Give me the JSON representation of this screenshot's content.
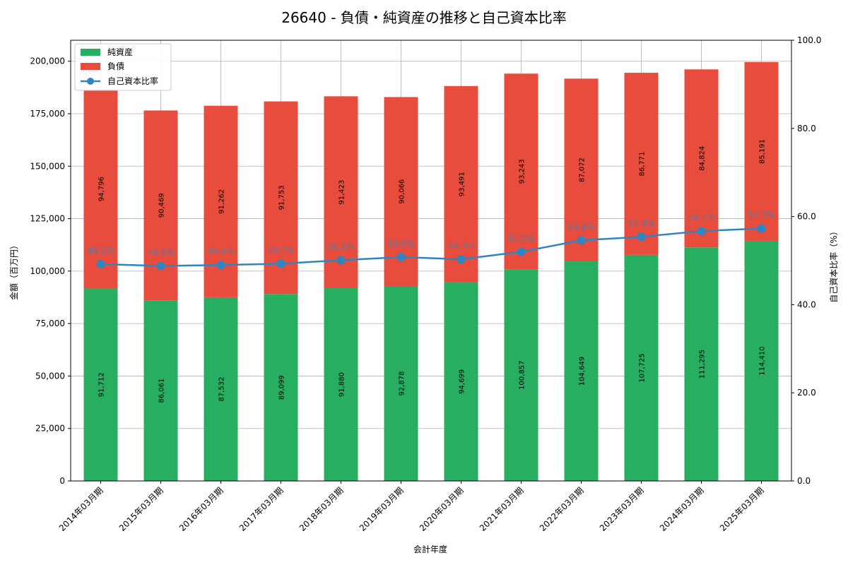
{
  "chart_data": {
    "type": "bar",
    "title": "26640 - 負債・純資産の推移と自己資本比率",
    "xlabel": "会計年度",
    "ylabel": "金額（百万円）",
    "y2label": "自己資本比率（%）",
    "ylim": [
      0,
      210000
    ],
    "y2lim": [
      0,
      100
    ],
    "yticks": [
      "0",
      "25,000",
      "50,000",
      "75,000",
      "100,000",
      "125,000",
      "150,000",
      "175,000",
      "200,000"
    ],
    "y2ticks": [
      "0.0",
      "20.0",
      "40.0",
      "60.0",
      "80.0",
      "100.0"
    ],
    "categories": [
      "2014年03月期",
      "2015年03月期",
      "2016年03月期",
      "2017年03月期",
      "2018年03月期",
      "2019年03月期",
      "2020年03月期",
      "2021年03月期",
      "2022年03月期",
      "2023年03月期",
      "2024年03月期",
      "2025年03月期"
    ],
    "series": [
      {
        "name": "純資産",
        "kind": "bar",
        "color": "#27ae60",
        "values": [
          91712,
          86061,
          87532,
          89099,
          91880,
          92878,
          94699,
          100857,
          104649,
          107725,
          111295,
          114410
        ],
        "labels": [
          "91,712",
          "86,061",
          "87,532",
          "89,099",
          "91,880",
          "92,878",
          "94,699",
          "100,857",
          "104,649",
          "107,725",
          "111,295",
          "114,410"
        ]
      },
      {
        "name": "負債",
        "kind": "bar",
        "color": "#e74c3c",
        "values": [
          94796,
          90469,
          91262,
          91753,
          91423,
          90066,
          93491,
          93243,
          87072,
          86771,
          84824,
          85191
        ],
        "labels": [
          "94,796",
          "90,469",
          "91,262",
          "91,753",
          "91,423",
          "90,066",
          "93,491",
          "93,243",
          "87,072",
          "86,771",
          "84,824",
          "85,191"
        ]
      },
      {
        "name": "自己資本比率",
        "kind": "line",
        "axis": "right",
        "color": "#2e86c1",
        "values": [
          49.2,
          48.8,
          49.0,
          49.3,
          50.1,
          50.8,
          50.3,
          52.0,
          54.6,
          55.4,
          56.7,
          57.3
        ],
        "labels": [
          "49.2%",
          "48.8%",
          "49.0%",
          "49.3%",
          "50.1%",
          "50.8%",
          "50.3%",
          "52.0%",
          "54.6%",
          "55.4%",
          "56.7%",
          "57.3%"
        ]
      }
    ],
    "grid": true,
    "legend": "top-left"
  }
}
